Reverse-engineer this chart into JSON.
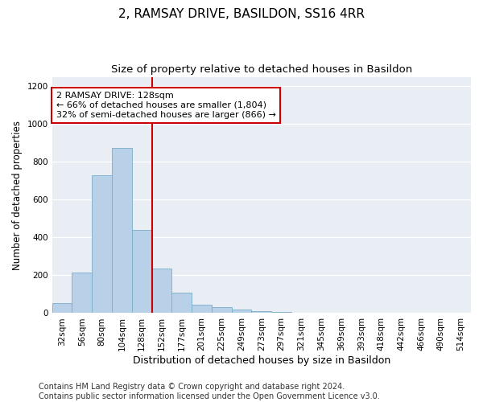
{
  "title": "2, RAMSAY DRIVE, BASILDON, SS16 4RR",
  "subtitle": "Size of property relative to detached houses in Basildon",
  "xlabel": "Distribution of detached houses by size in Basildon",
  "ylabel": "Number of detached properties",
  "bar_labels": [
    "32sqm",
    "56sqm",
    "80sqm",
    "104sqm",
    "128sqm",
    "152sqm",
    "177sqm",
    "201sqm",
    "225sqm",
    "249sqm",
    "273sqm",
    "297sqm",
    "321sqm",
    "345sqm",
    "369sqm",
    "393sqm",
    "418sqm",
    "442sqm",
    "466sqm",
    "490sqm",
    "514sqm"
  ],
  "bar_values": [
    55,
    215,
    730,
    875,
    440,
    235,
    110,
    45,
    30,
    18,
    12,
    6,
    3,
    2,
    1,
    1,
    0,
    0,
    0,
    0,
    0
  ],
  "bar_color": "#b8d0e8",
  "bar_edge_color": "#7aaec8",
  "vline_color": "#cc0000",
  "annotation_text": "2 RAMSAY DRIVE: 128sqm\n← 66% of detached houses are smaller (1,804)\n32% of semi-detached houses are larger (866) →",
  "annotation_box_facecolor": "#ffffff",
  "annotation_box_edgecolor": "#cc0000",
  "ylim": [
    0,
    1250
  ],
  "yticks": [
    0,
    200,
    400,
    600,
    800,
    1000,
    1200
  ],
  "plot_bg_color": "#e8eef4",
  "footer": "Contains HM Land Registry data © Crown copyright and database right 2024.\nContains public sector information licensed under the Open Government Licence v3.0.",
  "title_fontsize": 11,
  "subtitle_fontsize": 9.5,
  "tick_fontsize": 7.5,
  "ylabel_fontsize": 8.5,
  "xlabel_fontsize": 9,
  "annotation_fontsize": 8,
  "footer_fontsize": 7
}
